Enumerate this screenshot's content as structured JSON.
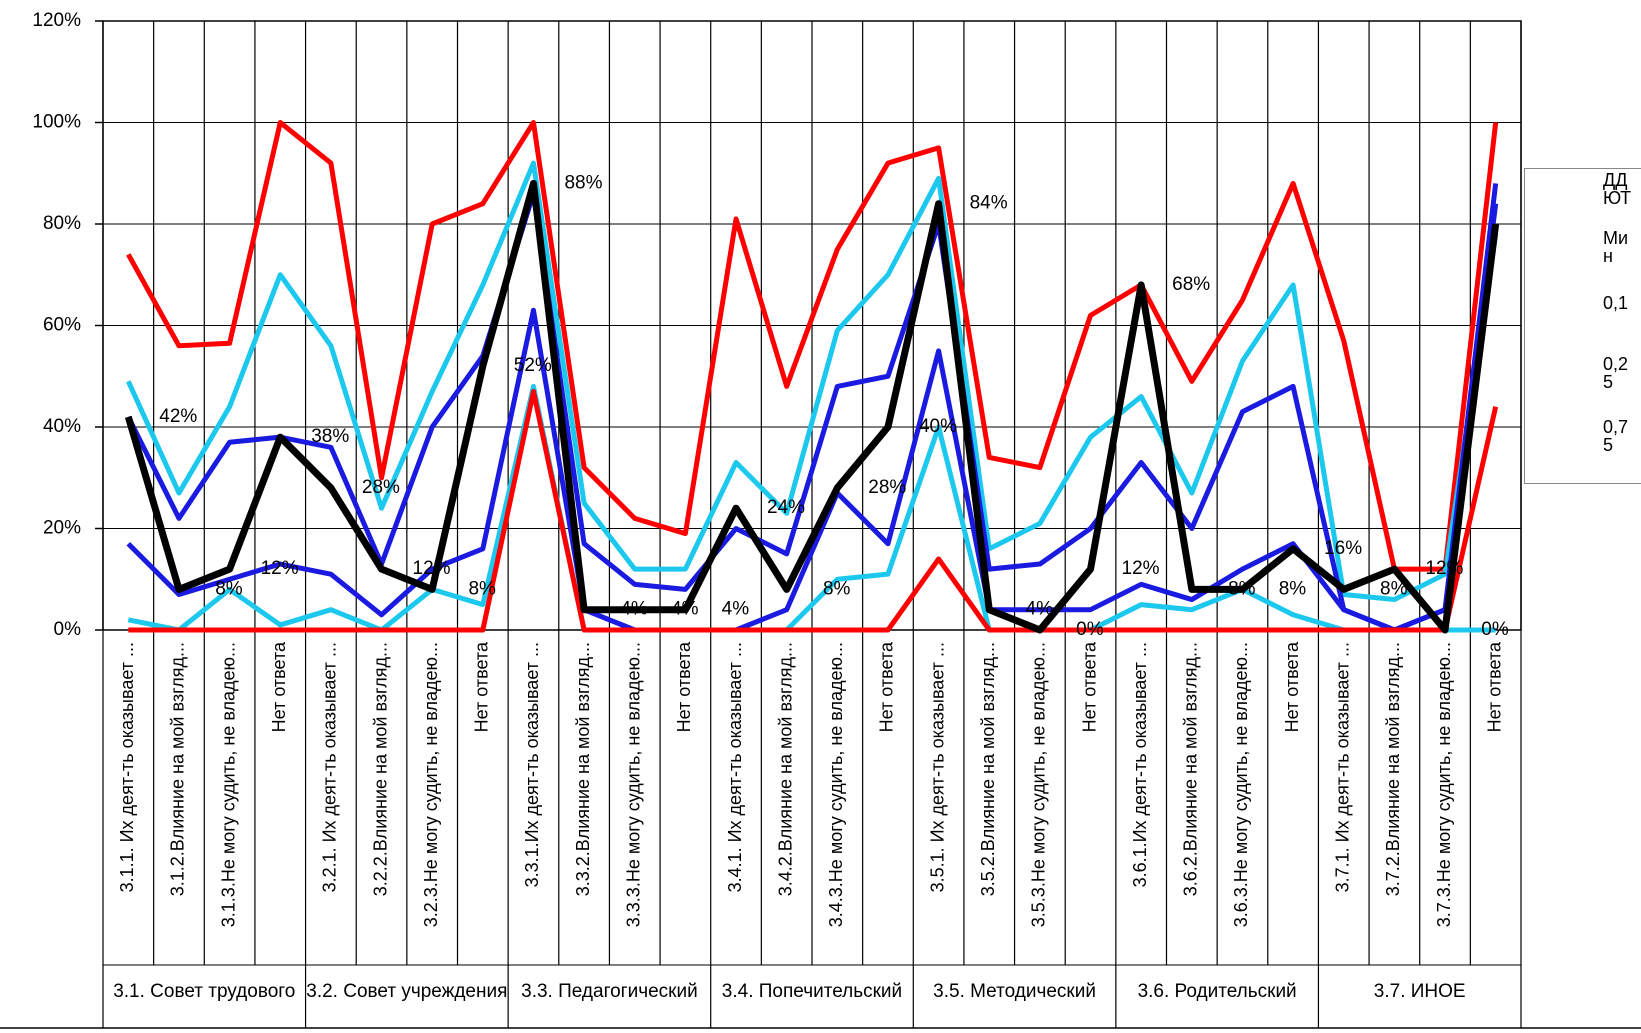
{
  "chart_data": {
    "type": "line",
    "categories": [
      "3.1.1. Их деят-ть оказывает ...",
      "3.1.2.Влияние на мой взгляд...",
      "3.1.3.Не могу судить, не владею...",
      "Нет ответа",
      "3.2.1. Их деят-ть оказывает ...",
      "3.2.2.Влияние на мой взгляд...",
      "3.2.3.Не могу судить, не владею...",
      "Нет ответа",
      "3.3.1.Их деят-ть оказывает ...",
      "3.3.2.Влияние на мой взгляд...",
      "3.3.3.Не могу судить, не владею...",
      "Нет ответа",
      "3.4.1. Их деят-ть оказывает ...",
      "3.4.2.Влияние на мой взгляд...",
      "3.4.3.Не могу судить, не владею...",
      "Нет ответа",
      "3.5.1. Их деят-ть оказывает ...",
      "3.5.2.Влияние на мой взгляд...",
      "3.5.3.Не могу судить, не владею...",
      "Нет ответа",
      "3.6.1.Их деят-ть оказывает ...",
      "3.6.2.Влияние на мой взгляд...",
      "3.6.3.Не могу судить, не владею...",
      "Нет ответа",
      "3.7.1. Их деят-ть оказывает ...",
      "3.7.2.Влияние на мой взгляд...",
      "3.7.3.Не могу судить, не владею...",
      "Нет ответа"
    ],
    "groups": [
      "3.1. Совет трудового",
      "3.2. Совет учреждения",
      "3.3. Педагогический",
      "3.4. Попечительский",
      "3.5. Методический",
      "3.6. Родительский",
      "3.7. ИНОЕ"
    ],
    "series": [
      {
        "name": "ДДЮТ",
        "color": "#000000",
        "values": [
          42,
          8,
          12,
          38,
          28,
          12,
          8,
          52,
          88,
          4,
          4,
          4,
          24,
          8,
          28,
          40,
          84,
          4,
          0,
          12,
          68,
          8,
          8,
          16,
          8,
          12,
          0,
          80
        ],
        "value_labels": [
          "42%",
          "8%",
          "12%",
          "38%",
          "28%",
          "12%",
          "8%",
          "52%",
          "88%",
          "4%",
          "4%",
          "4%",
          "24%",
          "8%",
          "28%",
          "40%",
          "84%",
          "4%",
          "0%",
          "12%",
          "68%",
          "8%",
          "8%",
          "16%",
          "8%",
          "12%",
          "0%",
          null
        ]
      },
      {
        "name": "Мин",
        "color": "#ff0000",
        "values": [
          0,
          0,
          0,
          0,
          0,
          0,
          0,
          0,
          47,
          0,
          0,
          0,
          0,
          0,
          0,
          0,
          14,
          0,
          0,
          0,
          0,
          0,
          0,
          0,
          0,
          0,
          0,
          44
        ]
      },
      {
        "name": "0,1",
        "color": "#1cc8ee",
        "values": [
          2,
          0,
          8,
          1,
          4,
          0,
          8,
          5,
          48,
          0,
          0,
          0,
          0,
          0,
          10,
          11,
          40,
          0,
          0,
          0,
          5,
          4,
          8,
          3,
          0,
          0,
          0,
          0
        ]
      },
      {
        "name": "0,25",
        "color": "#1a1ae0",
        "values": [
          17,
          7,
          10,
          13,
          11,
          3,
          12,
          16,
          63,
          4,
          0,
          0,
          0,
          4,
          27,
          17,
          55,
          4,
          4,
          4,
          9,
          6,
          12,
          17,
          4,
          0,
          4,
          84
        ]
      },
      {
        "name": "0,75",
        "color": "#1a1ae0",
        "values": [
          42,
          22,
          37,
          38,
          36,
          13,
          40,
          54,
          86,
          17,
          9,
          8,
          20,
          15,
          48,
          50,
          80,
          12,
          13,
          20,
          33,
          20,
          43,
          48,
          4,
          0,
          4,
          88
        ]
      },
      {
        "color": "#1cc8ee",
        "values": [
          49,
          27,
          44,
          70,
          56,
          24,
          47,
          68,
          92,
          25,
          12,
          12,
          33,
          23,
          59,
          70,
          89,
          16,
          21,
          38,
          46,
          27,
          53,
          68,
          7,
          6,
          11,
          78
        ]
      },
      {
        "color": "#ff0000",
        "values": [
          74,
          56,
          56.5,
          100,
          92,
          30,
          80,
          84,
          100,
          32,
          22,
          19,
          81,
          48,
          75,
          92,
          95,
          34,
          32,
          62,
          68,
          49,
          65,
          88,
          57,
          12,
          12,
          100
        ]
      }
    ],
    "ylim": [
      0,
      120
    ],
    "yticks": [
      {
        "value": 0,
        "label": "0%"
      },
      {
        "value": 20,
        "label": "20%"
      },
      {
        "value": 40,
        "label": "40%"
      },
      {
        "value": 60,
        "label": "60%"
      },
      {
        "value": 80,
        "label": "80%"
      },
      {
        "value": 100,
        "label": "100%"
      },
      {
        "value": 120,
        "label": "120%"
      }
    ],
    "grid": true,
    "legend": "right"
  }
}
